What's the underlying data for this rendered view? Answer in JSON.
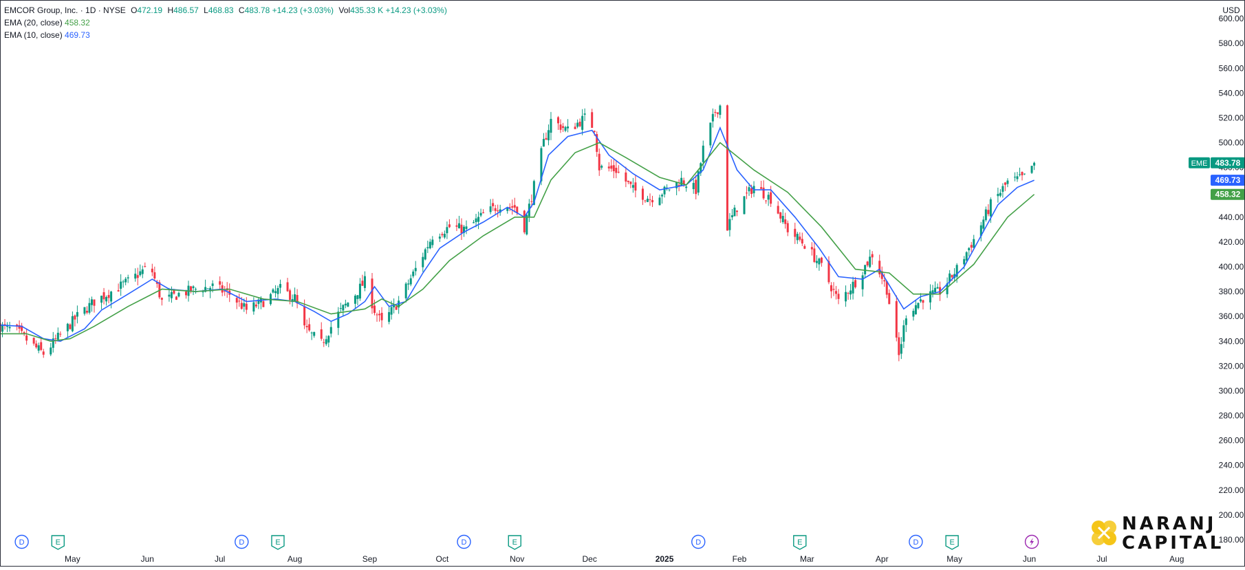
{
  "header": {
    "symbol": "EMCOR Group, Inc. · 1D · NYSE",
    "open_label": "O",
    "open": "472.19",
    "high_label": "H",
    "high": "486.57",
    "low_label": "L",
    "low": "468.83",
    "close_label": "C",
    "close": "483.78",
    "change": "+14.23 (+3.03%)",
    "vol_label": "Vol",
    "volume": "435.33 K",
    "vol_change": "+14.23 (+3.03%)"
  },
  "indicators": {
    "ema20_label": "EMA (20, close)",
    "ema20_value": "458.32",
    "ema10_label": "EMA (10, close)",
    "ema10_value": "469.73"
  },
  "currency": "USD",
  "price_tags": {
    "ticker": "EME",
    "last": "483.78",
    "ema10": "469.73",
    "ema20": "458.32"
  },
  "colors": {
    "up": "#089981",
    "down": "#f23645",
    "ema10": "#2962ff",
    "ema20": "#43a047",
    "axis_text": "#131722",
    "event_dividend": "#2962ff",
    "event_earnings": "#089981",
    "event_split": "#9c27b0"
  },
  "events": [
    {
      "type": "D",
      "icon": "dividend-icon",
      "date": "2024-04-10"
    },
    {
      "type": "E",
      "icon": "earnings-icon",
      "date": "2024-04-25"
    },
    {
      "type": "D",
      "icon": "dividend-icon",
      "date": "2024-07-10"
    },
    {
      "type": "E",
      "icon": "earnings-icon",
      "date": "2024-07-25"
    },
    {
      "type": "D",
      "icon": "dividend-icon",
      "date": "2024-10-10"
    },
    {
      "type": "E",
      "icon": "earnings-icon",
      "date": "2024-10-31"
    },
    {
      "type": "D",
      "icon": "dividend-icon",
      "date": "2025-01-15"
    },
    {
      "type": "E",
      "icon": "earnings-icon",
      "date": "2025-02-26"
    },
    {
      "type": "D",
      "icon": "dividend-icon",
      "date": "2025-04-15"
    },
    {
      "type": "E",
      "icon": "earnings-icon",
      "date": "2025-04-30"
    },
    {
      "type": "S",
      "icon": "lightning-icon",
      "date": "2025-06-02"
    }
  ],
  "brand": {
    "line1": "NARANJ",
    "line2": "CAPITAL"
  },
  "chart_data": {
    "type": "candlestick",
    "x_start": "2024-04-01",
    "x_end": "2025-08-15",
    "ylim": [
      175,
      615
    ],
    "y_ticks": [
      180,
      200,
      220,
      240,
      260,
      280,
      300,
      320,
      340,
      360,
      380,
      400,
      420,
      440,
      460,
      480,
      500,
      520,
      540,
      560,
      580,
      600
    ],
    "x_ticks": [
      {
        "label": "May",
        "date": "2024-05-01"
      },
      {
        "label": "Jun",
        "date": "2024-06-01"
      },
      {
        "label": "Jul",
        "date": "2024-07-01"
      },
      {
        "label": "Aug",
        "date": "2024-08-01"
      },
      {
        "label": "Sep",
        "date": "2024-09-01"
      },
      {
        "label": "Oct",
        "date": "2024-10-01"
      },
      {
        "label": "Nov",
        "date": "2024-11-01"
      },
      {
        "label": "Dec",
        "date": "2024-12-01"
      },
      {
        "label": "2025",
        "date": "2025-01-01",
        "bold": true
      },
      {
        "label": "Feb",
        "date": "2025-02-01"
      },
      {
        "label": "Mar",
        "date": "2025-03-01"
      },
      {
        "label": "Apr",
        "date": "2025-04-01"
      },
      {
        "label": "May",
        "date": "2025-05-01"
      },
      {
        "label": "Jun",
        "date": "2025-06-01"
      },
      {
        "label": "Jul",
        "date": "2025-07-01"
      },
      {
        "label": "Aug",
        "date": "2025-08-01"
      }
    ],
    "close_path": [
      [
        "2024-04-01",
        352
      ],
      [
        "2024-04-08",
        348
      ],
      [
        "2024-04-15",
        336
      ],
      [
        "2024-04-19",
        330
      ],
      [
        "2024-04-26",
        345
      ],
      [
        "2024-05-03",
        360
      ],
      [
        "2024-05-10",
        372
      ],
      [
        "2024-05-17",
        380
      ],
      [
        "2024-05-24",
        388
      ],
      [
        "2024-05-31",
        398
      ],
      [
        "2024-06-03",
        396
      ],
      [
        "2024-06-07",
        372
      ],
      [
        "2024-06-14",
        378
      ],
      [
        "2024-06-21",
        382
      ],
      [
        "2024-06-28",
        384
      ],
      [
        "2024-07-05",
        378
      ],
      [
        "2024-07-12",
        365
      ],
      [
        "2024-07-19",
        372
      ],
      [
        "2024-07-26",
        382
      ],
      [
        "2024-08-01",
        375
      ],
      [
        "2024-08-05",
        350
      ],
      [
        "2024-08-08",
        345
      ],
      [
        "2024-08-12",
        338
      ],
      [
        "2024-08-19",
        362
      ],
      [
        "2024-08-26",
        378
      ],
      [
        "2024-08-30",
        388
      ],
      [
        "2024-09-03",
        365
      ],
      [
        "2024-09-06",
        354
      ],
      [
        "2024-09-13",
        372
      ],
      [
        "2024-09-20",
        398
      ],
      [
        "2024-09-27",
        425
      ],
      [
        "2024-10-04",
        432
      ],
      [
        "2024-10-11",
        430
      ],
      [
        "2024-10-18",
        442
      ],
      [
        "2024-10-25",
        450
      ],
      [
        "2024-10-31",
        448
      ],
      [
        "2024-11-04",
        432
      ],
      [
        "2024-11-08",
        465
      ],
      [
        "2024-11-12",
        500
      ],
      [
        "2024-11-15",
        518
      ],
      [
        "2024-11-22",
        510
      ],
      [
        "2024-11-29",
        520
      ],
      [
        "2024-12-03",
        512
      ],
      [
        "2024-12-05",
        480
      ],
      [
        "2024-12-12",
        478
      ],
      [
        "2024-12-19",
        462
      ],
      [
        "2024-12-26",
        455
      ],
      [
        "2025-01-02",
        462
      ],
      [
        "2025-01-08",
        470
      ],
      [
        "2025-01-14",
        462
      ],
      [
        "2025-01-17",
        495
      ],
      [
        "2025-01-22",
        525
      ],
      [
        "2025-01-24",
        530
      ],
      [
        "2025-01-27",
        432
      ],
      [
        "2025-01-31",
        448
      ],
      [
        "2025-02-07",
        465
      ],
      [
        "2025-02-14",
        455
      ],
      [
        "2025-02-21",
        430
      ],
      [
        "2025-02-28",
        418
      ],
      [
        "2025-03-07",
        400
      ],
      [
        "2025-03-14",
        372
      ],
      [
        "2025-03-21",
        388
      ],
      [
        "2025-03-28",
        410
      ],
      [
        "2025-04-03",
        382
      ],
      [
        "2025-04-08",
        328
      ],
      [
        "2025-04-11",
        362
      ],
      [
        "2025-04-18",
        375
      ],
      [
        "2025-04-25",
        380
      ],
      [
        "2025-05-02",
        398
      ],
      [
        "2025-05-09",
        422
      ],
      [
        "2025-05-16",
        450
      ],
      [
        "2025-05-23",
        468
      ],
      [
        "2025-05-30",
        472
      ],
      [
        "2025-06-03",
        483.78
      ]
    ],
    "series": [
      {
        "name": "EMA (10, close)",
        "values": [
          [
            "2024-04-01",
            353
          ],
          [
            "2024-04-10",
            352
          ],
          [
            "2024-04-19",
            342
          ],
          [
            "2024-04-26",
            340
          ],
          [
            "2024-05-06",
            350
          ],
          [
            "2024-05-13",
            365
          ],
          [
            "2024-05-24",
            378
          ],
          [
            "2024-06-03",
            390
          ],
          [
            "2024-06-10",
            382
          ],
          [
            "2024-06-21",
            380
          ],
          [
            "2024-07-02",
            382
          ],
          [
            "2024-07-12",
            372
          ],
          [
            "2024-07-24",
            374
          ],
          [
            "2024-08-01",
            372
          ],
          [
            "2024-08-09",
            364
          ],
          [
            "2024-08-16",
            356
          ],
          [
            "2024-08-23",
            362
          ],
          [
            "2024-08-30",
            372
          ],
          [
            "2024-09-03",
            384
          ],
          [
            "2024-09-09",
            368
          ],
          [
            "2024-09-16",
            372
          ],
          [
            "2024-09-23",
            395
          ],
          [
            "2024-09-30",
            415
          ],
          [
            "2024-10-10",
            428
          ],
          [
            "2024-10-18",
            436
          ],
          [
            "2024-10-28",
            448
          ],
          [
            "2024-11-04",
            440
          ],
          [
            "2024-11-08",
            452
          ],
          [
            "2024-11-14",
            490
          ],
          [
            "2024-11-22",
            505
          ],
          [
            "2024-12-02",
            510
          ],
          [
            "2024-12-09",
            490
          ],
          [
            "2024-12-19",
            475
          ],
          [
            "2024-12-30",
            462
          ],
          [
            "2025-01-10",
            466
          ],
          [
            "2025-01-17",
            478
          ],
          [
            "2025-01-24",
            512
          ],
          [
            "2025-01-31",
            478
          ],
          [
            "2025-02-07",
            462
          ],
          [
            "2025-02-14",
            462
          ],
          [
            "2025-02-24",
            440
          ],
          [
            "2025-03-06",
            415
          ],
          [
            "2025-03-14",
            392
          ],
          [
            "2025-03-24",
            390
          ],
          [
            "2025-03-31",
            398
          ],
          [
            "2025-04-10",
            366
          ],
          [
            "2025-04-17",
            376
          ],
          [
            "2025-04-25",
            380
          ],
          [
            "2025-05-05",
            400
          ],
          [
            "2025-05-12",
            425
          ],
          [
            "2025-05-19",
            450
          ],
          [
            "2025-05-27",
            464
          ],
          [
            "2025-06-03",
            469.73
          ]
        ]
      },
      {
        "name": "EMA (20, close)",
        "values": [
          [
            "2024-04-01",
            346
          ],
          [
            "2024-04-12",
            346
          ],
          [
            "2024-04-22",
            340
          ],
          [
            "2024-04-30",
            342
          ],
          [
            "2024-05-10",
            352
          ],
          [
            "2024-05-24",
            368
          ],
          [
            "2024-06-07",
            382
          ],
          [
            "2024-06-21",
            380
          ],
          [
            "2024-07-05",
            382
          ],
          [
            "2024-07-19",
            374
          ],
          [
            "2024-08-02",
            372
          ],
          [
            "2024-08-16",
            362
          ],
          [
            "2024-08-30",
            366
          ],
          [
            "2024-09-06",
            374
          ],
          [
            "2024-09-13",
            368
          ],
          [
            "2024-09-23",
            382
          ],
          [
            "2024-10-04",
            405
          ],
          [
            "2024-10-18",
            425
          ],
          [
            "2024-10-31",
            440
          ],
          [
            "2024-11-08",
            440
          ],
          [
            "2024-11-15",
            470
          ],
          [
            "2024-11-25",
            492
          ],
          [
            "2024-12-05",
            500
          ],
          [
            "2024-12-16",
            488
          ],
          [
            "2024-12-30",
            472
          ],
          [
            "2025-01-10",
            466
          ],
          [
            "2025-01-24",
            500
          ],
          [
            "2025-02-07",
            478
          ],
          [
            "2025-02-21",
            460
          ],
          [
            "2025-03-07",
            432
          ],
          [
            "2025-03-21",
            398
          ],
          [
            "2025-04-04",
            395
          ],
          [
            "2025-04-14",
            378
          ],
          [
            "2025-04-25",
            378
          ],
          [
            "2025-05-09",
            402
          ],
          [
            "2025-05-23",
            440
          ],
          [
            "2025-06-03",
            458.32
          ]
        ]
      }
    ]
  }
}
